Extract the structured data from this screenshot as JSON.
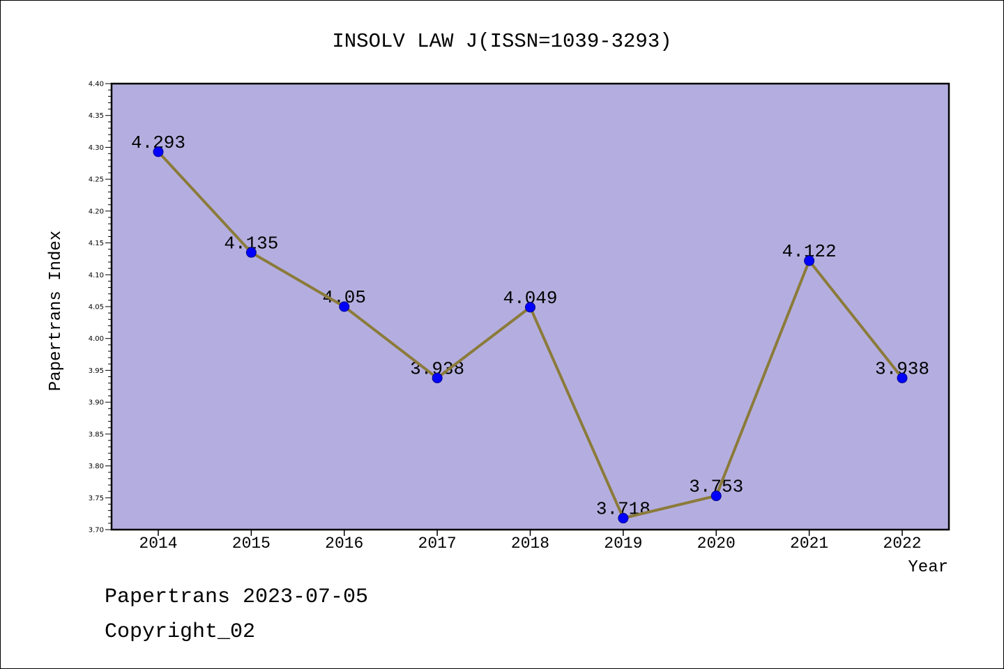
{
  "chart_data": {
    "type": "line",
    "title": "INSOLV LAW J(ISSN=1039-3293)",
    "xlabel": "Year",
    "ylabel": "Papertrans Index",
    "categories": [
      "2014",
      "2015",
      "2016",
      "2017",
      "2018",
      "2019",
      "2020",
      "2021",
      "2022"
    ],
    "series": [
      {
        "values": [
          4.293,
          4.135,
          4.05,
          3.938,
          4.049,
          3.718,
          3.753,
          4.122,
          3.938
        ]
      }
    ],
    "ylim": [
      3.7,
      4.4
    ],
    "yticks": [
      "3.70",
      "3.75",
      "3.80",
      "3.85",
      "3.90",
      "3.95",
      "4.00",
      "4.05",
      "4.10",
      "4.15",
      "4.20",
      "4.25",
      "4.30",
      "4.35",
      "4.40"
    ],
    "grid": false,
    "legend": "none",
    "data_labels": true
  },
  "colors": {
    "plot_background": "#b4aee0",
    "line": "#8b7b3a",
    "marker_fill": "#0000ff",
    "marker_edge": "#00008b"
  },
  "footer": {
    "line1": "Papertrans 2023-07-05",
    "line2": "Copyright_02"
  }
}
